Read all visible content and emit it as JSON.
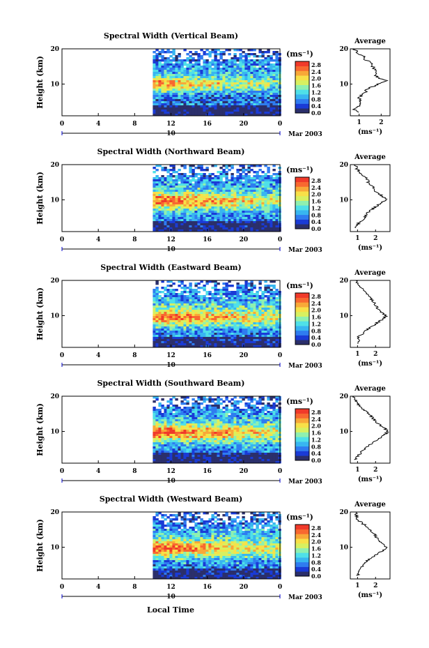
{
  "figure": {
    "xlabel": "Local Time",
    "date_label": "Mar 2003",
    "day_label": "10",
    "colorbar_unit": "(ms⁻¹)",
    "avg_title": "Average",
    "avg_unit": "(ms⁻¹)"
  },
  "colormap": [
    "#2b2f6b",
    "#1a3bd6",
    "#2f7cf0",
    "#38b6f0",
    "#4fe0e8",
    "#8ff0b0",
    "#d8f060",
    "#f8e048",
    "#f8a838",
    "#f86830",
    "#f03a2a"
  ],
  "chart_data": [
    {
      "type": "heatmap",
      "title": "Spectral Width (Vertical Beam)",
      "ylabel": "Height (km)",
      "x_ticks": [
        "0",
        "4",
        "8",
        "12",
        "16",
        "20",
        "0"
      ],
      "y_ticks": [
        "20",
        "10"
      ],
      "xlim": [
        0,
        24
      ],
      "ylim": [
        1,
        20
      ],
      "data_start_hour": 10,
      "colorbar_ticks": [
        "2.8",
        "2.4",
        "2.0",
        "1.6",
        "1.2",
        "0.8",
        "0.4",
        "0.0"
      ],
      "clim": [
        0,
        3.0
      ],
      "profile": {
        "xlim": [
          0.6,
          2.4
        ],
        "x_ticks": [
          "1",
          "2"
        ],
        "x_tick_values": [
          1,
          2
        ],
        "heights": [
          2,
          3,
          4,
          5,
          6,
          7,
          8,
          9,
          10,
          11,
          12,
          13,
          14,
          15,
          16,
          17,
          18,
          19,
          20
        ],
        "values": [
          0.9,
          0.75,
          1.0,
          1.1,
          1.0,
          1.15,
          1.3,
          1.5,
          1.9,
          2.2,
          1.8,
          1.7,
          1.75,
          1.6,
          1.5,
          1.3,
          1.15,
          0.9,
          0.8
        ]
      }
    },
    {
      "type": "heatmap",
      "title": "Spectral Width (Northward Beam)",
      "ylabel": "Height (km)",
      "x_ticks": [
        "0",
        "4",
        "8",
        "12",
        "16",
        "20",
        "0"
      ],
      "y_ticks": [
        "20",
        "10"
      ],
      "xlim": [
        0,
        24
      ],
      "ylim": [
        1,
        20
      ],
      "data_start_hour": 10,
      "colorbar_ticks": [
        "2.8",
        "2.4",
        "2.0",
        "1.6",
        "1.2",
        "0.8",
        "0.4",
        "0.0"
      ],
      "clim": [
        0,
        3.0
      ],
      "profile": {
        "xlim": [
          0.6,
          2.8
        ],
        "x_ticks": [
          "1",
          "2"
        ],
        "x_tick_values": [
          1,
          2
        ],
        "heights": [
          2,
          3,
          4,
          5,
          6,
          7,
          8,
          9,
          10,
          11,
          12,
          13,
          14,
          15,
          16,
          17,
          18,
          19,
          20
        ],
        "values": [
          0.9,
          1.0,
          1.2,
          1.4,
          1.5,
          1.7,
          2.0,
          2.3,
          2.6,
          2.4,
          2.1,
          1.9,
          1.8,
          1.6,
          1.5,
          1.3,
          1.1,
          0.95,
          0.85
        ]
      }
    },
    {
      "type": "heatmap",
      "title": "Spectral Width (Eastward Beam)",
      "ylabel": "Height (km)",
      "x_ticks": [
        "0",
        "4",
        "8",
        "12",
        "16",
        "20",
        "0"
      ],
      "y_ticks": [
        "20",
        "10"
      ],
      "xlim": [
        0,
        24
      ],
      "ylim": [
        1,
        20
      ],
      "data_start_hour": 10,
      "colorbar_ticks": [
        "2.8",
        "2.4",
        "2.0",
        "1.6",
        "1.2",
        "0.8",
        "0.4",
        "0.0"
      ],
      "clim": [
        0,
        3.0
      ],
      "profile": {
        "xlim": [
          0.6,
          2.8
        ],
        "x_ticks": [
          "1",
          "2"
        ],
        "x_tick_values": [
          1,
          2
        ],
        "heights": [
          2,
          3,
          4,
          5,
          6,
          7,
          8,
          9,
          10,
          11,
          12,
          13,
          14,
          15,
          16,
          17,
          18,
          19,
          20
        ],
        "values": [
          1.0,
          1.1,
          1.0,
          1.3,
          1.5,
          1.8,
          2.1,
          2.4,
          2.6,
          2.3,
          2.1,
          2.0,
          1.9,
          1.7,
          1.5,
          1.4,
          1.2,
          1.0,
          0.9
        ]
      }
    },
    {
      "type": "heatmap",
      "title": "Spectral Width (Southward Beam)",
      "ylabel": "Height (km)",
      "x_ticks": [
        "0",
        "4",
        "8",
        "12",
        "16",
        "20",
        "0"
      ],
      "y_ticks": [
        "20",
        "10"
      ],
      "xlim": [
        0,
        24
      ],
      "ylim": [
        1,
        20
      ],
      "data_start_hour": 10,
      "colorbar_ticks": [
        "2.8",
        "2.4",
        "2.0",
        "1.6",
        "1.2",
        "0.8",
        "0.4",
        "0.0"
      ],
      "clim": [
        0,
        3.0
      ],
      "profile": {
        "xlim": [
          0.6,
          2.8
        ],
        "x_ticks": [
          "1",
          "2"
        ],
        "x_tick_values": [
          1,
          2
        ],
        "heights": [
          2,
          3,
          4,
          5,
          6,
          7,
          8,
          9,
          10,
          11,
          12,
          13,
          14,
          15,
          16,
          17,
          18,
          19,
          20
        ],
        "values": [
          0.9,
          1.0,
          1.2,
          1.4,
          1.6,
          1.9,
          2.2,
          2.5,
          2.7,
          2.5,
          2.2,
          2.0,
          1.8,
          1.6,
          1.4,
          1.2,
          1.0,
          0.9,
          0.8
        ]
      }
    },
    {
      "type": "heatmap",
      "title": "Spectral Width (Westward Beam)",
      "ylabel": "Height (km)",
      "x_ticks": [
        "0",
        "4",
        "8",
        "12",
        "16",
        "20",
        "0"
      ],
      "y_ticks": [
        "20",
        "10"
      ],
      "xlim": [
        0,
        24
      ],
      "ylim": [
        1,
        20
      ],
      "data_start_hour": 10,
      "colorbar_ticks": [
        "2.8",
        "2.4",
        "2.0",
        "1.6",
        "1.2",
        "0.8",
        "0.4",
        "0.0"
      ],
      "clim": [
        0,
        3.0
      ],
      "profile": {
        "xlim": [
          0.6,
          2.8
        ],
        "x_ticks": [
          "1",
          "2"
        ],
        "x_tick_values": [
          1,
          2
        ],
        "heights": [
          2,
          3,
          4,
          5,
          6,
          7,
          8,
          9,
          10,
          11,
          12,
          13,
          14,
          15,
          16,
          17,
          18,
          19,
          20
        ],
        "values": [
          1.0,
          1.1,
          1.2,
          1.3,
          1.5,
          1.8,
          2.1,
          2.4,
          2.6,
          2.4,
          2.2,
          2.0,
          1.9,
          1.7,
          1.5,
          1.2,
          1.0,
          0.95,
          0.9
        ]
      }
    }
  ]
}
